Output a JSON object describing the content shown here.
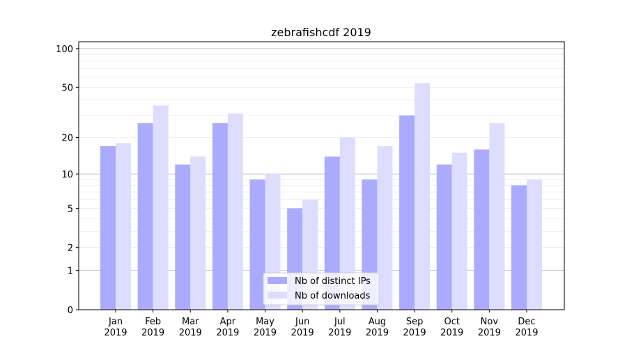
{
  "chart_data": {
    "type": "bar",
    "title": "zebrafishcdf 2019",
    "xlabel": "",
    "ylabel": "",
    "yscale": "symlog (log10(1+y))",
    "ylim": [
      0,
      113
    ],
    "yticks": [
      0,
      1,
      2,
      5,
      10,
      20,
      50,
      100
    ],
    "ytick_labels": [
      "0",
      "1",
      "2",
      "5",
      "10",
      "20",
      "50",
      "100"
    ],
    "grid": true,
    "legend_position": "bottom-center",
    "categories": [
      "Jan\n2019",
      "Feb\n2019",
      "Mar\n2019",
      "Apr\n2019",
      "May\n2019",
      "Jun\n2019",
      "Jul\n2019",
      "Aug\n2019",
      "Sep\n2019",
      "Oct\n2019",
      "Nov\n2019",
      "Dec\n2019"
    ],
    "category_months": [
      "Jan",
      "Feb",
      "Mar",
      "Apr",
      "May",
      "Jun",
      "Jul",
      "Aug",
      "Sep",
      "Oct",
      "Nov",
      "Dec"
    ],
    "category_year": "2019",
    "series": [
      {
        "name": "Nb of distinct IPs",
        "color": "#aaaaff",
        "values": [
          17,
          26,
          12,
          26,
          9,
          5,
          14,
          9,
          30,
          12,
          16,
          8
        ]
      },
      {
        "name": "Nb of downloads",
        "color": "#ddddff",
        "values": [
          18,
          36,
          14,
          31,
          10,
          6,
          20,
          17,
          54,
          15,
          26,
          9
        ]
      }
    ]
  }
}
